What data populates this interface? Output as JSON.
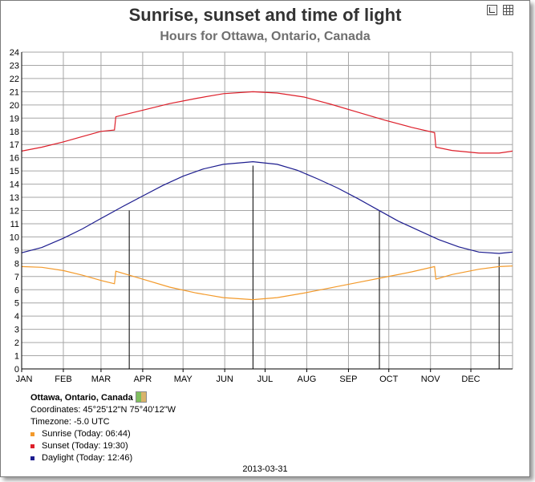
{
  "chart_data": {
    "type": "line",
    "title": "Sunrise, sunset and time of light",
    "subtitle": "Hours for Ottawa, Ontario, Canada",
    "ylim": [
      0,
      24
    ],
    "yticks": [
      0,
      1,
      2,
      3,
      4,
      5,
      6,
      7,
      8,
      9,
      10,
      11,
      12,
      13,
      14,
      15,
      16,
      17,
      18,
      19,
      20,
      21,
      22,
      23,
      24
    ],
    "xlim": [
      0,
      365
    ],
    "months": [
      {
        "label": "JAN",
        "day": 0
      },
      {
        "label": "FEB",
        "day": 31
      },
      {
        "label": "MAR",
        "day": 59
      },
      {
        "label": "APR",
        "day": 90
      },
      {
        "label": "MAY",
        "day": 120
      },
      {
        "label": "JUN",
        "day": 151
      },
      {
        "label": "JUL",
        "day": 181
      },
      {
        "label": "AUG",
        "day": 212
      },
      {
        "label": "SEP",
        "day": 243
      },
      {
        "label": "OCT",
        "day": 273
      },
      {
        "label": "NOV",
        "day": 304
      },
      {
        "label": "DEC",
        "day": 334
      }
    ],
    "grid": true,
    "series": [
      {
        "name": "Sunset",
        "color": "#dd1f2a",
        "points": [
          [
            0,
            16.5
          ],
          [
            15,
            16.8
          ],
          [
            31,
            17.2
          ],
          [
            45,
            17.6
          ],
          [
            59,
            18.0
          ],
          [
            69,
            18.1
          ],
          [
            70,
            19.1
          ],
          [
            90,
            19.6
          ],
          [
            110,
            20.1
          ],
          [
            130,
            20.5
          ],
          [
            150,
            20.85
          ],
          [
            172,
            21.0
          ],
          [
            190,
            20.9
          ],
          [
            210,
            20.6
          ],
          [
            230,
            20.05
          ],
          [
            250,
            19.45
          ],
          [
            270,
            18.85
          ],
          [
            290,
            18.3
          ],
          [
            307,
            17.9
          ],
          [
            308,
            16.8
          ],
          [
            320,
            16.55
          ],
          [
            340,
            16.35
          ],
          [
            355,
            16.35
          ],
          [
            365,
            16.5
          ]
        ]
      },
      {
        "name": "Daylight",
        "color": "#1d1d8f",
        "points": [
          [
            0,
            8.8
          ],
          [
            15,
            9.2
          ],
          [
            31,
            9.9
          ],
          [
            45,
            10.6
          ],
          [
            59,
            11.4
          ],
          [
            75,
            12.3
          ],
          [
            90,
            13.1
          ],
          [
            105,
            13.9
          ],
          [
            120,
            14.6
          ],
          [
            135,
            15.15
          ],
          [
            150,
            15.5
          ],
          [
            172,
            15.7
          ],
          [
            190,
            15.5
          ],
          [
            205,
            15.05
          ],
          [
            220,
            14.4
          ],
          [
            235,
            13.7
          ],
          [
            250,
            12.9
          ],
          [
            265,
            12.05
          ],
          [
            280,
            11.2
          ],
          [
            295,
            10.5
          ],
          [
            310,
            9.8
          ],
          [
            325,
            9.25
          ],
          [
            340,
            8.85
          ],
          [
            355,
            8.75
          ],
          [
            365,
            8.85
          ]
        ]
      },
      {
        "name": "Sunrise",
        "color": "#f39a2b",
        "points": [
          [
            0,
            7.75
          ],
          [
            15,
            7.7
          ],
          [
            31,
            7.45
          ],
          [
            45,
            7.1
          ],
          [
            59,
            6.7
          ],
          [
            69,
            6.45
          ],
          [
            70,
            7.4
          ],
          [
            90,
            6.8
          ],
          [
            110,
            6.2
          ],
          [
            130,
            5.75
          ],
          [
            150,
            5.4
          ],
          [
            172,
            5.25
          ],
          [
            190,
            5.4
          ],
          [
            210,
            5.75
          ],
          [
            230,
            6.15
          ],
          [
            250,
            6.55
          ],
          [
            270,
            6.95
          ],
          [
            290,
            7.35
          ],
          [
            307,
            7.75
          ],
          [
            308,
            6.8
          ],
          [
            320,
            7.15
          ],
          [
            340,
            7.55
          ],
          [
            355,
            7.75
          ],
          [
            365,
            7.8
          ]
        ]
      }
    ],
    "markers": [
      {
        "day": 80,
        "value": 12.0
      },
      {
        "day": 172,
        "value": 15.4
      },
      {
        "day": 266,
        "value": 12.0
      },
      {
        "day": 355,
        "value": 8.5
      }
    ]
  },
  "info": {
    "location": "Ottawa, Ontario, Canada",
    "coordinates": "Coordinates: 45°25'12\"N 75°40'12\"W",
    "timezone": "Timezone: -5.0 UTC",
    "legend": [
      {
        "label": "Sunrise (Today: 06:44)",
        "color": "#f39a2b"
      },
      {
        "label": "Sunset (Today: 19:30)",
        "color": "#dd1f2a"
      },
      {
        "label": "Daylight (Today: 12:46)",
        "color": "#1d1d8f"
      }
    ],
    "date": "2013-03-31"
  },
  "icons": {
    "export": "export-image-icon",
    "table": "data-table-icon",
    "map": "map-icon"
  }
}
